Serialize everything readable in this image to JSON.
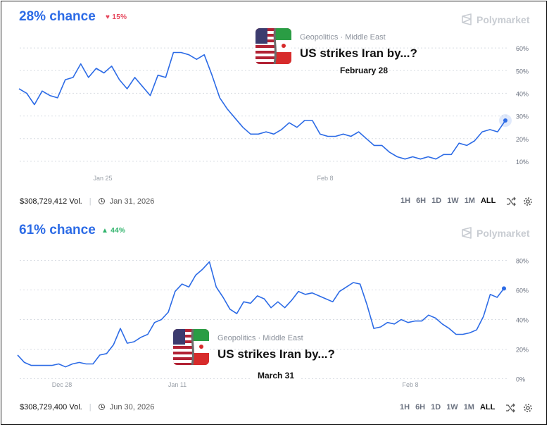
{
  "brand": "Polymarket",
  "range_buttons": [
    "1H",
    "6H",
    "1D",
    "1W",
    "1M",
    "ALL"
  ],
  "active_range": "ALL",
  "colors": {
    "line": "#2c6be6",
    "down": "#e6475c",
    "up": "#2fb36b",
    "grid": "#d9dde3"
  },
  "panels": [
    {
      "chance_label": "28% chance",
      "delta_label": "15%",
      "delta_direction": "down",
      "category": "Geopolitics",
      "subcategory": "Middle East",
      "question": "US strikes Iran by...?",
      "deadline": "February 28",
      "volume": "$308,729,412 Vol.",
      "end_date": "Jan 31, 2026"
    },
    {
      "chance_label": "61% chance",
      "delta_label": "44%",
      "delta_direction": "up",
      "category": "Geopolitics",
      "subcategory": "Middle East",
      "question": "US strikes Iran by...?",
      "deadline": "March 31",
      "volume": "$308,729,400 Vol.",
      "end_date": "Jun 30, 2026"
    }
  ],
  "chart_data": [
    {
      "type": "line",
      "title": "28% chance",
      "series": [
        {
          "values": [
            42,
            40,
            35,
            41,
            39,
            38,
            46,
            47,
            53,
            47,
            51,
            49,
            52,
            46,
            42,
            47,
            43,
            39,
            48,
            47,
            58,
            58,
            57,
            55,
            57,
            48,
            38,
            33,
            29,
            25,
            22,
            22,
            23,
            22,
            24,
            27,
            25,
            28,
            28,
            22,
            21,
            21,
            22,
            21,
            23,
            20,
            17,
            17,
            14,
            12,
            11,
            12,
            11,
            12,
            11,
            13,
            13,
            18,
            17,
            19,
            23,
            24,
            23,
            28
          ]
        }
      ],
      "x_ticks": [
        "Jan 25",
        "Feb 8"
      ],
      "ylim": [
        5,
        65
      ],
      "yticks": [
        10,
        20,
        30,
        40,
        50,
        60
      ],
      "ytick_labels": [
        "10%",
        "20%",
        "30%",
        "40%",
        "50%",
        "60%"
      ],
      "grid": true,
      "current_value": 28
    },
    {
      "type": "line",
      "title": "61% chance",
      "series": [
        {
          "values": [
            16,
            11,
            9,
            9,
            9,
            9,
            10,
            8,
            10,
            11,
            10,
            10,
            16,
            17,
            23,
            34,
            24,
            25,
            28,
            30,
            38,
            40,
            45,
            59,
            64,
            62,
            70,
            74,
            79,
            62,
            55,
            47,
            44,
            52,
            51,
            56,
            54,
            48,
            52,
            48,
            53,
            59,
            57,
            58,
            56,
            54,
            52,
            59,
            62,
            65,
            64,
            50,
            34,
            35,
            38,
            37,
            40,
            38,
            39,
            39,
            43,
            41,
            37,
            34,
            30,
            30,
            31,
            33,
            42,
            57,
            55,
            61
          ]
        }
      ],
      "x_ticks": [
        "Dec 28",
        "Jan 11",
        "Feb 8"
      ],
      "ylim": [
        -5,
        85
      ],
      "yticks": [
        0,
        20,
        40,
        60,
        80
      ],
      "ytick_labels": [
        "0%",
        "20%",
        "40%",
        "60%",
        "80%"
      ],
      "grid": true,
      "current_value": 61
    }
  ]
}
